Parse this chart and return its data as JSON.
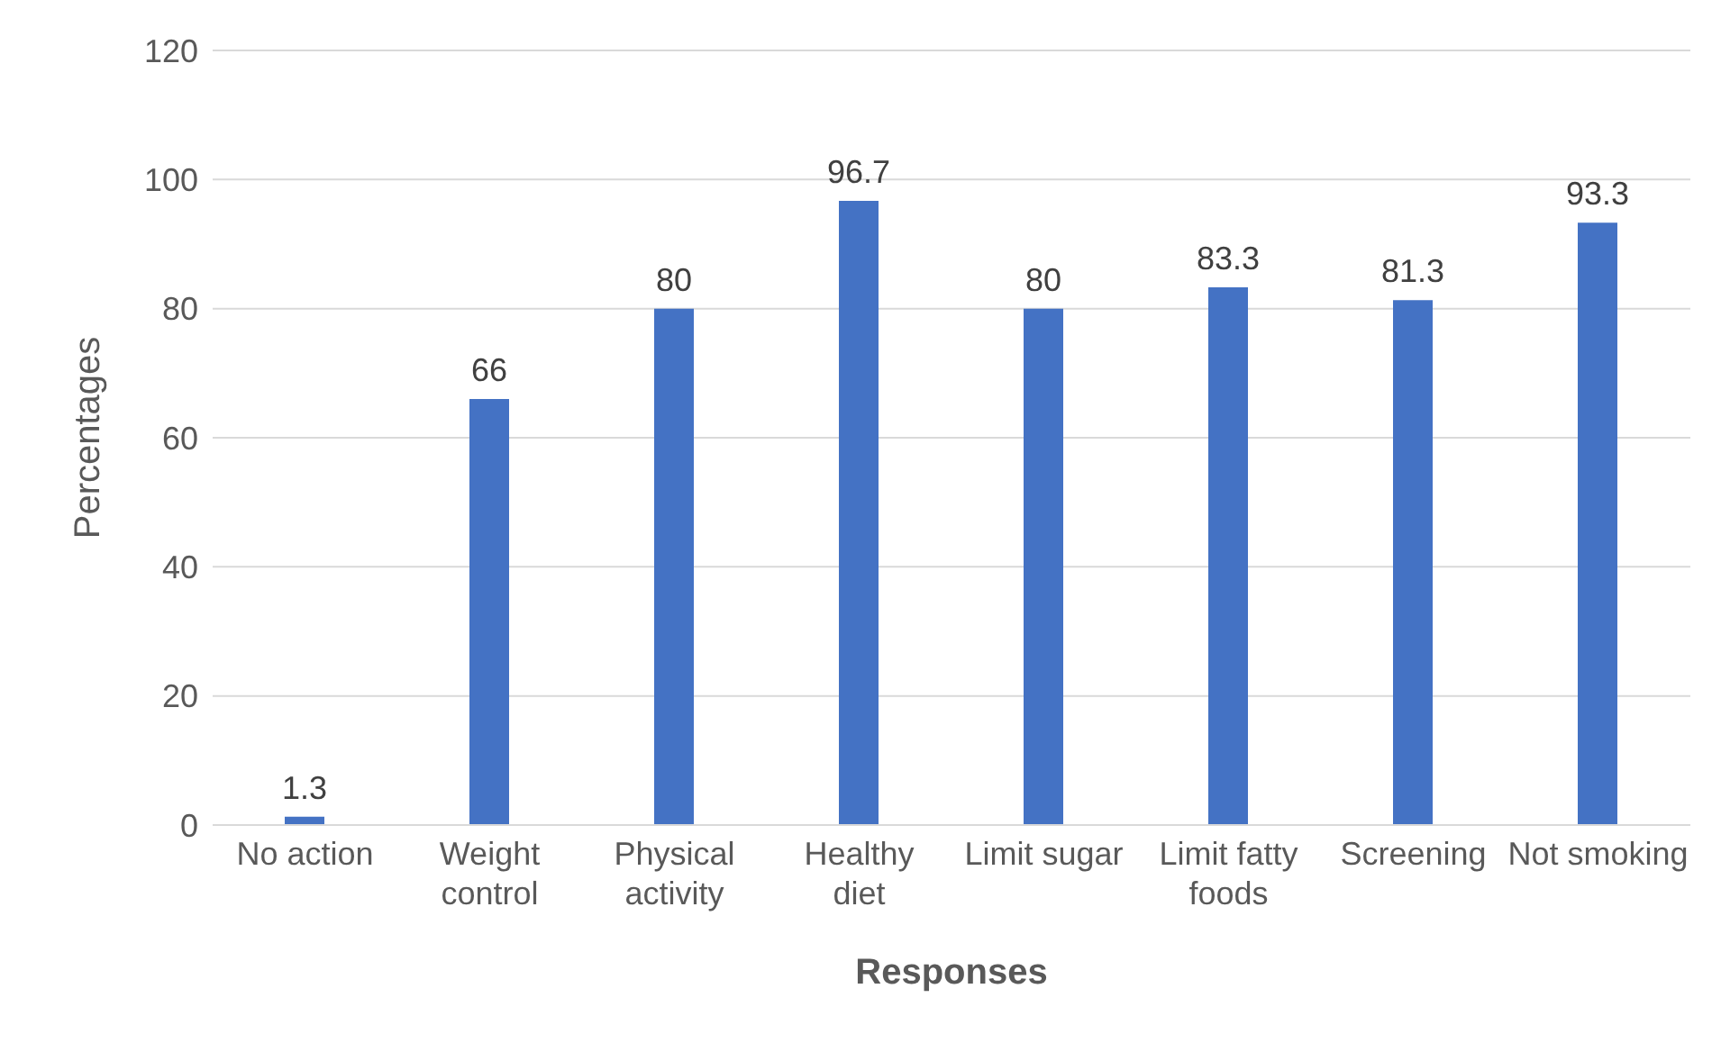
{
  "chart_data": {
    "type": "bar",
    "xlabel": "Responses",
    "ylabel": "Percentages",
    "categories": [
      "No action",
      "Weight control",
      "Physical activity",
      "Healthy diet",
      "Limit sugar",
      "Limit fatty foods",
      "Screening",
      "Not smoking"
    ],
    "values": [
      1.3,
      66,
      80,
      96.7,
      80,
      83.3,
      81.3,
      93.3
    ],
    "color": "#4472c4",
    "ylim": [
      0,
      120
    ],
    "yticks": [
      0,
      20,
      40,
      60,
      80,
      100,
      120
    ],
    "grid": "y",
    "data_labels": true
  }
}
